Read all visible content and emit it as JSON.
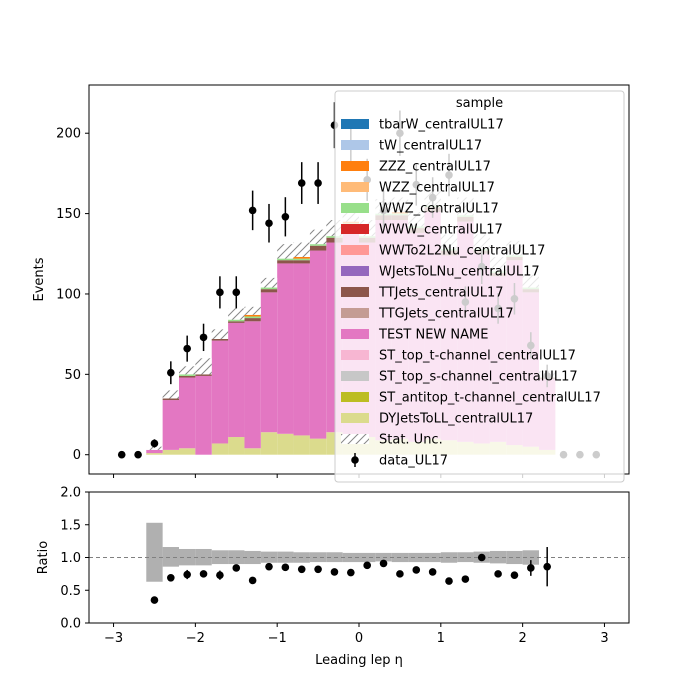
{
  "chart_data": [
    {
      "type": "bar",
      "panel": "main",
      "ylabel": "Events",
      "xlim": [
        -3.3,
        3.3
      ],
      "ylim": [
        -12,
        230
      ],
      "y_ticks": [
        0,
        50,
        100,
        150,
        200
      ],
      "y_tick_labels": [
        "0",
        "50",
        "100",
        "150",
        "200"
      ],
      "bin_edges": [
        -2.6,
        -2.4,
        -2.2,
        -2.0,
        -1.8,
        -1.6,
        -1.4,
        -1.2,
        -1.0,
        -0.8,
        -0.6,
        -0.4,
        -0.2,
        0.0,
        0.2,
        0.4,
        0.6,
        0.8,
        1.0,
        1.2,
        1.4,
        1.6,
        1.8,
        2.0,
        2.2,
        2.4
      ],
      "series": [
        {
          "name": "DYJetsToLL_centralUL17",
          "color": "#dbdb8d",
          "values": [
            1,
            3,
            4,
            0,
            7,
            11,
            4,
            14,
            13,
            12,
            10,
            14,
            12,
            11,
            9,
            10,
            8,
            10,
            9,
            8,
            7,
            8,
            6,
            5,
            3
          ]
        },
        {
          "name": "TEST NEW NAME",
          "color": "#e377c2",
          "values": [
            2,
            31,
            44,
            49,
            64,
            71,
            79,
            87,
            106,
            107,
            117,
            118,
            128,
            121,
            137,
            136,
            130,
            141,
            115,
            137,
            118,
            103,
            115,
            96,
            44
          ]
        },
        {
          "name": "TTJets_centralUL17",
          "color": "#8c564b",
          "values": [
            0,
            1,
            1,
            1,
            1,
            1,
            2,
            2,
            2,
            2,
            3,
            3,
            3,
            3,
            3,
            3,
            3,
            3,
            3,
            3,
            2,
            2,
            2,
            2,
            1
          ]
        },
        {
          "name": "WWZ_centralUL17",
          "color": "#98df8a",
          "values": [
            0,
            0,
            1,
            0,
            0,
            1,
            1,
            1,
            1,
            1,
            1,
            1,
            1,
            1,
            1,
            1,
            1,
            1,
            1,
            1,
            1,
            1,
            1,
            1,
            0
          ]
        },
        {
          "name": "ZZZ_centralUL17",
          "color": "#ff7f0e",
          "values": [
            0,
            0,
            0,
            0,
            0,
            0,
            1,
            0,
            0,
            1,
            0,
            0,
            1,
            0,
            0,
            1,
            0,
            0,
            0,
            0,
            0,
            0,
            0,
            0,
            0
          ]
        }
      ],
      "stat_unc_top": [
        5,
        40,
        55,
        60,
        78,
        91,
        92,
        110,
        131,
        132,
        140,
        146,
        154,
        146,
        159,
        160,
        151,
        165,
        137,
        160,
        137,
        123,
        133,
        112,
        52
      ],
      "data": {
        "name": "data_UL17",
        "x": [
          -2.9,
          -2.7,
          -2.5,
          -2.3,
          -2.1,
          -1.9,
          -1.7,
          -1.5,
          -1.3,
          -1.1,
          -0.9,
          -0.7,
          -0.5,
          -0.3,
          -0.1,
          0.1,
          0.3,
          0.5,
          0.7,
          0.9,
          1.1,
          1.3,
          1.5,
          1.7,
          1.9,
          2.1,
          2.3,
          2.5,
          2.7,
          2.9
        ],
        "y": [
          0,
          0,
          7,
          51,
          66,
          73,
          101,
          101,
          152,
          144,
          148,
          169,
          169,
          205,
          193,
          171,
          152,
          200,
          168,
          160,
          174,
          95,
          117,
          91,
          97,
          68,
          49,
          0,
          0,
          0
        ],
        "err": [
          0,
          0,
          2.6,
          7.1,
          8.1,
          8.5,
          10,
          10,
          12.3,
          12,
          12.2,
          13,
          13,
          14.3,
          13.9,
          13.1,
          12.3,
          14.1,
          13,
          12.6,
          13.2,
          9.7,
          10.8,
          9.5,
          9.8,
          8.2,
          7,
          0,
          0,
          0
        ]
      },
      "legend": {
        "title": "sample",
        "placement": "upper right",
        "entries": [
          {
            "label": "tbarW_centralUL17",
            "color": "#1f77b4",
            "kind": "patch"
          },
          {
            "label": "tW_centralUL17",
            "color": "#aec7e8",
            "kind": "patch"
          },
          {
            "label": "ZZZ_centralUL17",
            "color": "#ff7f0e",
            "kind": "patch"
          },
          {
            "label": "WZZ_centralUL17",
            "color": "#ffbb78",
            "kind": "patch"
          },
          {
            "label": "WWZ_centralUL17",
            "color": "#98df8a",
            "kind": "patch"
          },
          {
            "label": "WWW_centralUL17",
            "color": "#d62728",
            "kind": "patch"
          },
          {
            "label": "WWTo2L2Nu_centralUL17",
            "color": "#ff9896",
            "kind": "patch"
          },
          {
            "label": "WJetsToLNu_centralUL17",
            "color": "#9467bd",
            "kind": "patch"
          },
          {
            "label": "TTJets_centralUL17",
            "color": "#8c564b",
            "kind": "patch"
          },
          {
            "label": "TTGJets_centralUL17",
            "color": "#c49c94",
            "kind": "patch"
          },
          {
            "label": "TEST NEW NAME",
            "color": "#e377c2",
            "kind": "patch"
          },
          {
            "label": "ST_top_t-channel_centralUL17",
            "color": "#f7b6d2",
            "kind": "patch"
          },
          {
            "label": "ST_top_s-channel_centralUL17",
            "color": "#c7c7c7",
            "kind": "patch"
          },
          {
            "label": "ST_antitop_t-channel_centralUL17",
            "color": "#bcbd22",
            "kind": "patch"
          },
          {
            "label": "DYJetsToLL_centralUL17",
            "color": "#dbdb8d",
            "kind": "patch"
          },
          {
            "label": "Stat. Unc.",
            "color": "#888888",
            "kind": "hatch"
          },
          {
            "label": "data_UL17",
            "color": "#000000",
            "kind": "errorbar"
          }
        ]
      }
    },
    {
      "type": "scatter",
      "panel": "ratio",
      "xlabel": "Leading lep η",
      "ylabel": "Ratio",
      "xlim": [
        -3.3,
        3.3
      ],
      "ylim": [
        0.0,
        2.0
      ],
      "x_ticks": [
        -3,
        -2,
        -1,
        0,
        1,
        2,
        3
      ],
      "x_tick_labels": [
        "−3",
        "−2",
        "−1",
        "0",
        "1",
        "2",
        "3"
      ],
      "y_ticks": [
        0.0,
        0.5,
        1.0,
        1.5,
        2.0
      ],
      "y_tick_labels": [
        "0.0",
        "0.5",
        "1.0",
        "1.5",
        "2.0"
      ],
      "reference_line": 1.0,
      "unc_band": {
        "bin_edges": [
          -2.6,
          -2.4,
          -2.2,
          -2.0,
          -1.8,
          -1.6,
          -1.4,
          -1.2,
          -1.0,
          -0.8,
          -0.6,
          -0.4,
          -0.2,
          0.0,
          0.2,
          0.4,
          0.6,
          0.8,
          1.0,
          1.2,
          1.4,
          1.6,
          1.8,
          2.0,
          2.2
        ],
        "lo": [
          0.63,
          0.86,
          0.88,
          0.88,
          0.9,
          0.9,
          0.9,
          0.92,
          0.92,
          0.92,
          0.93,
          0.93,
          0.93,
          0.93,
          0.94,
          0.93,
          0.93,
          0.93,
          0.92,
          0.93,
          0.92,
          0.91,
          0.9,
          0.89
        ],
        "hi": [
          1.53,
          1.16,
          1.13,
          1.13,
          1.11,
          1.11,
          1.1,
          1.09,
          1.09,
          1.08,
          1.08,
          1.08,
          1.07,
          1.07,
          1.07,
          1.07,
          1.07,
          1.07,
          1.08,
          1.08,
          1.09,
          1.1,
          1.1,
          1.11
        ]
      },
      "points": {
        "x": [
          -2.5,
          -2.3,
          -2.1,
          -1.9,
          -1.7,
          -1.5,
          -1.3,
          -1.1,
          -0.9,
          -0.7,
          -0.5,
          -0.3,
          -0.1,
          0.1,
          0.3,
          0.5,
          0.7,
          0.9,
          1.1,
          1.3,
          1.5,
          1.7,
          1.9,
          2.1,
          2.3
        ],
        "y": [
          0.35,
          0.69,
          0.74,
          0.75,
          0.73,
          0.84,
          0.65,
          0.86,
          0.85,
          0.82,
          0.82,
          0.78,
          0.77,
          0.88,
          0.91,
          0.75,
          0.81,
          0.78,
          0.64,
          0.67,
          1.0,
          0.75,
          0.73,
          0.84,
          0.86
        ],
        "err": [
          0,
          0,
          0.07,
          0,
          0.07,
          0,
          0,
          0,
          0,
          0,
          0,
          0,
          0,
          0,
          0,
          0,
          0,
          0,
          0,
          0,
          0,
          0.05,
          0,
          0.12,
          0.3
        ]
      }
    }
  ]
}
